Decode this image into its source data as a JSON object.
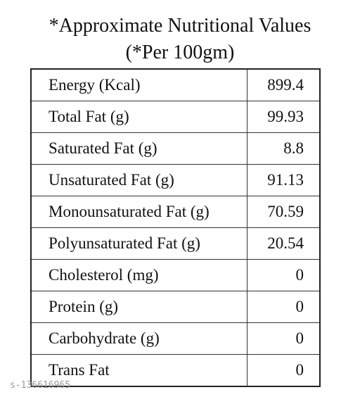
{
  "header": {
    "title": "*Approximate Nutritional Values",
    "subtitle": "(*Per 100gm)"
  },
  "table": {
    "rows": [
      [
        "Energy (Kcal)",
        "899.4"
      ],
      [
        "Total Fat (g)",
        "99.93"
      ],
      [
        "Saturated Fat (g)",
        "8.8"
      ],
      [
        "Unsaturated Fat (g)",
        "91.13"
      ],
      [
        "Monounsaturated Fat (g)",
        "70.59"
      ],
      [
        "Polyunsaturated Fat (g)",
        "20.54"
      ],
      [
        "Cholesterol (mg)",
        "0"
      ],
      [
        "Protein (g)",
        "0"
      ],
      [
        "Carbohydrate (g)",
        "0"
      ],
      [
        "Trans Fat",
        "0"
      ]
    ]
  },
  "watermark": "s-136616965"
}
